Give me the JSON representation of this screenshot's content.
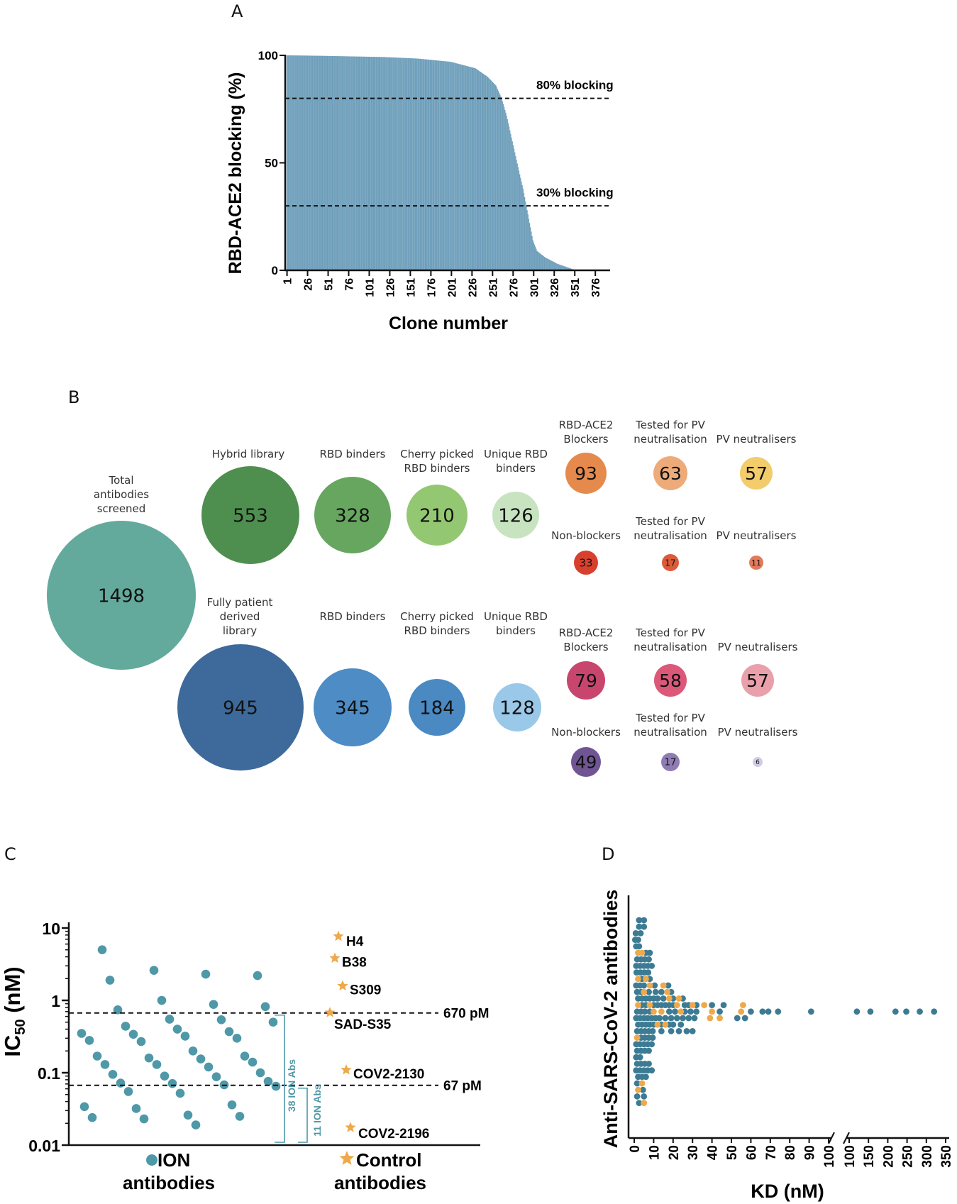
{
  "panel_letters": [
    "A",
    "B",
    "C",
    "D"
  ],
  "chart_data": [
    {
      "id": "A",
      "type": "bar",
      "ylabel": "RBD-ACE2 blocking (%)",
      "xlabel": "Clone number",
      "ylim": [
        0,
        100
      ],
      "yticks": [
        0,
        50,
        100
      ],
      "xticks": [
        "1",
        "26",
        "51",
        "76",
        "101",
        "126",
        "151",
        "176",
        "201",
        "226",
        "251",
        "276",
        "301",
        "326",
        "351",
        "376"
      ],
      "n_clones": 390,
      "bar_color": "#6f9fbb",
      "profile": [
        [
          1,
          100
        ],
        [
          40,
          99.8
        ],
        [
          80,
          99.5
        ],
        [
          120,
          99.2
        ],
        [
          160,
          98.5
        ],
        [
          200,
          97
        ],
        [
          230,
          94
        ],
        [
          245,
          90
        ],
        [
          255,
          86
        ],
        [
          262,
          80
        ],
        [
          268,
          72
        ],
        [
          275,
          60
        ],
        [
          282,
          48
        ],
        [
          288,
          38
        ],
        [
          292,
          30
        ],
        [
          296,
          22
        ],
        [
          300,
          14
        ],
        [
          305,
          9
        ],
        [
          315,
          6
        ],
        [
          330,
          3
        ],
        [
          345,
          1
        ],
        [
          352,
          0
        ],
        [
          390,
          0
        ]
      ],
      "reference_lines": [
        {
          "y": 80,
          "label": "80% blocking"
        },
        {
          "y": 30,
          "label": "30% blocking"
        }
      ]
    },
    {
      "id": "B",
      "type": "bubble-flow",
      "total": {
        "label": "Total antibodies screened",
        "value": 1498,
        "color": "#63aa9c"
      },
      "hybrid": {
        "library": {
          "label": "Hybrid library",
          "value": 553,
          "color": "#4e8f4f"
        },
        "rbd_binders": {
          "label": "RBD binders",
          "value": 328,
          "color": "#66a65f"
        },
        "cherry_picked": {
          "label": "Cherry picked RBD binders",
          "value": 210,
          "color": "#94c772"
        },
        "unique": {
          "label": "Unique RBD binders",
          "value": 126,
          "color": "#c8e3c0"
        },
        "blockers": [
          {
            "label": "RBD-ACE2 Blockers",
            "value": 93,
            "color": "#e58a4c"
          },
          {
            "label": "Tested for PV neutralisation",
            "value": 63,
            "color": "#eeab7a"
          },
          {
            "label": "PV neutralisers",
            "value": 57,
            "color": "#f3cc6b"
          }
        ],
        "non_blockers": [
          {
            "label": "Non-blockers",
            "value": 33,
            "color": "#d8402e"
          },
          {
            "label": "Tested for PV neutralisation",
            "value": 17,
            "color": "#dc5a3a"
          },
          {
            "label": "PV neutralisers",
            "value": 11,
            "color": "#e27a5a"
          }
        ]
      },
      "patient": {
        "library": {
          "label": "Fully patient derived library",
          "value": 945,
          "color": "#3d6a9b"
        },
        "rbd_binders": {
          "label": "RBD binders",
          "value": 345,
          "color": "#4d8cc5"
        },
        "cherry_picked": {
          "label": "Cherry picked RBD binders",
          "value": 184,
          "color": "#4a89c2"
        },
        "unique": {
          "label": "Unique RBD binders",
          "value": 128,
          "color": "#9ac8e8"
        },
        "blockers": [
          {
            "label": "RBD-ACE2 Blockers",
            "value": 79,
            "color": "#c8466e"
          },
          {
            "label": "Tested for PV neutralisation",
            "value": 58,
            "color": "#dc5879"
          },
          {
            "label": "PV neutralisers",
            "value": 57,
            "color": "#eaa0aa"
          }
        ],
        "non_blockers": [
          {
            "label": "Non-blockers",
            "value": 49,
            "color": "#6f5593"
          },
          {
            "label": "Tested for PV neutralisation",
            "value": 17,
            "color": "#8f7cb3"
          },
          {
            "label": "PV neutralisers",
            "value": 6,
            "color": "#d2cbe6"
          }
        ]
      }
    },
    {
      "id": "C",
      "type": "scatter",
      "ylabel_main": "IC",
      "ylabel_sub": "50",
      "ylabel_unit": " (nM)",
      "yscale": "log",
      "ylim": [
        0.01,
        10
      ],
      "yticks": [
        "0.01",
        "0.1",
        "1",
        "10"
      ],
      "ion_color": "#4e98a8",
      "control_color": "#eda94a",
      "ion_values": [
        5.0,
        2.6,
        2.3,
        2.2,
        1.9,
        1.0,
        0.88,
        0.82,
        0.74,
        0.55,
        0.54,
        0.5,
        0.44,
        0.4,
        0.37,
        0.35,
        0.34,
        0.32,
        0.3,
        0.28,
        0.27,
        0.2,
        0.17,
        0.17,
        0.16,
        0.155,
        0.14,
        0.13,
        0.13,
        0.12,
        0.1,
        0.095,
        0.09,
        0.088,
        0.076,
        0.072,
        0.071,
        0.068,
        0.065,
        0.055,
        0.052,
        0.036,
        0.034,
        0.032,
        0.026,
        0.025,
        0.024,
        0.023,
        0.019
      ],
      "controls": [
        {
          "name": "H4",
          "value": 7.0
        },
        {
          "name": "B38",
          "value": 3.5
        },
        {
          "name": "S309",
          "value": 1.45
        },
        {
          "name": "SAD-S35",
          "value": 0.62
        },
        {
          "name": "COV2-2130",
          "value": 0.1
        },
        {
          "name": "COV2-2196",
          "value": 0.016
        }
      ],
      "reference_lines": [
        {
          "value": 0.67,
          "label": "670 pM"
        },
        {
          "value": 0.067,
          "label": "67 pM"
        }
      ],
      "brackets": [
        "38 ION Abs",
        "11 ION Abs"
      ],
      "categories": [
        {
          "line1": "ION",
          "line2": "antibodies"
        },
        {
          "line1": "Control",
          "line2": "antibodies"
        }
      ]
    },
    {
      "id": "D",
      "type": "scatter",
      "ylabel": "Anti-SARS-CoV-2 antibodies",
      "xlabel": "KD (nM)",
      "x_segment1_ticks": [
        "0",
        "10",
        "20",
        "30",
        "40",
        "50",
        "60",
        "70",
        "80",
        "90",
        "100"
      ],
      "x_segment2_ticks": [
        "100",
        "150",
        "200",
        "250",
        "300",
        "350"
      ],
      "blue_color": "#3c7b93",
      "orange_color": "#eda94a",
      "rows": [
        {
          "o": [],
          "b": [
            2.5,
            5.0
          ]
        },
        {
          "o": [],
          "b": [
            2.5,
            5.0
          ]
        },
        {
          "o": [],
          "b": [
            0.8,
            3.3
          ]
        },
        {
          "o": [],
          "b": [
            0.5,
            2.0
          ]
        },
        {
          "o": [],
          "b": [
            1.0,
            2.5
          ]
        },
        {
          "o": [
            2.0,
            4.0
          ],
          "b": [
            6.0,
            8.0
          ]
        },
        {
          "o": [],
          "b": [
            1.5,
            3.5,
            5.5,
            7.5
          ]
        },
        {
          "o": [],
          "b": [
            1.0,
            3.0,
            5.0,
            7.0,
            9.0
          ]
        },
        {
          "o": [],
          "b": [
            1.2,
            3.2,
            5.2,
            7.2
          ]
        },
        {
          "o": [
            2.0,
            6.0
          ],
          "b": [
            4.0,
            8.0
          ]
        },
        {
          "o": [
            8.0,
            15.0
          ],
          "b": [
            1.0,
            3.0,
            5.0,
            10.5,
            17.5
          ]
        },
        {
          "o": [
            5.0,
            17.0
          ],
          "b": [
            1.5,
            3.5,
            7.5,
            11.0,
            14.0,
            19.0
          ]
        },
        {
          "o": [
            18.0,
            23.0
          ],
          "b": [
            2.0,
            4.0,
            6.0,
            8.0,
            10.0,
            12.0,
            15.0,
            20.0,
            25.0
          ]
        },
        {
          "o": [
            2.0,
            8.0,
            22.0,
            30.0,
            36.0,
            56.0
          ],
          "b": [
            4.0,
            6.0,
            10.0,
            12.0,
            14.0,
            16.0,
            18.0,
            20.0,
            26.0,
            28.0,
            32.0,
            40.0,
            46.0
          ]
        },
        {
          "o": [
            10.0,
            14.0,
            24.0,
            40.0,
            55.0
          ],
          "b": [
            1.5,
            3.5,
            5.5,
            8.0,
            18.0,
            21.0,
            26.0,
            29.0,
            32.0,
            44.0,
            60.0,
            66.0,
            69.0,
            74.0,
            91.0
          ],
          "b2": [
            120,
            155,
            220,
            248,
            283,
            320
          ]
        },
        {
          "o": [
            39.0,
            44.0
          ],
          "b": [
            1.0,
            3.0,
            5.0,
            7.0,
            9.0,
            11.0,
            13.0,
            16.0,
            19.0,
            22.0,
            25.0,
            28.0,
            31.0,
            53.0,
            57.0
          ]
        },
        {
          "o": [
            12.0,
            16.0
          ],
          "b": [
            2.0,
            4.0,
            6.0,
            8.0,
            10.0,
            14.0,
            18.0,
            20.0,
            24.0
          ]
        },
        {
          "o": [],
          "b": [
            1.5,
            3.5,
            5.5,
            7.5,
            9.5,
            14.0,
            19.0,
            23.0,
            27.0,
            30.0
          ]
        },
        {
          "o": [
            1.5
          ],
          "b": [
            3.5,
            5.5,
            7.5,
            9.5
          ]
        },
        {
          "o": [],
          "b": [
            1.0,
            3.0,
            5.0,
            7.0,
            9.0
          ]
        },
        {
          "o": [],
          "b": [
            1.5,
            3.5,
            5.5,
            7.5
          ]
        },
        {
          "o": [],
          "b": [
            1.0,
            3.0
          ]
        },
        {
          "o": [],
          "b": [
            1.5,
            3.5,
            5.5,
            7.5
          ]
        },
        {
          "o": [],
          "b": [
            1.0,
            3.0,
            5.0,
            7.0,
            9.0
          ]
        },
        {
          "o": [],
          "b": [
            2.0,
            4.0,
            6.0
          ]
        },
        {
          "o": [
            4.0
          ],
          "b": [
            1.5
          ]
        },
        {
          "o": [
            2.0
          ],
          "b": [
            4.5
          ]
        },
        {
          "o": [],
          "b": [
            1.5,
            5.0
          ]
        },
        {
          "o": [
            5.0
          ],
          "b": [
            2.5
          ]
        }
      ]
    }
  ]
}
